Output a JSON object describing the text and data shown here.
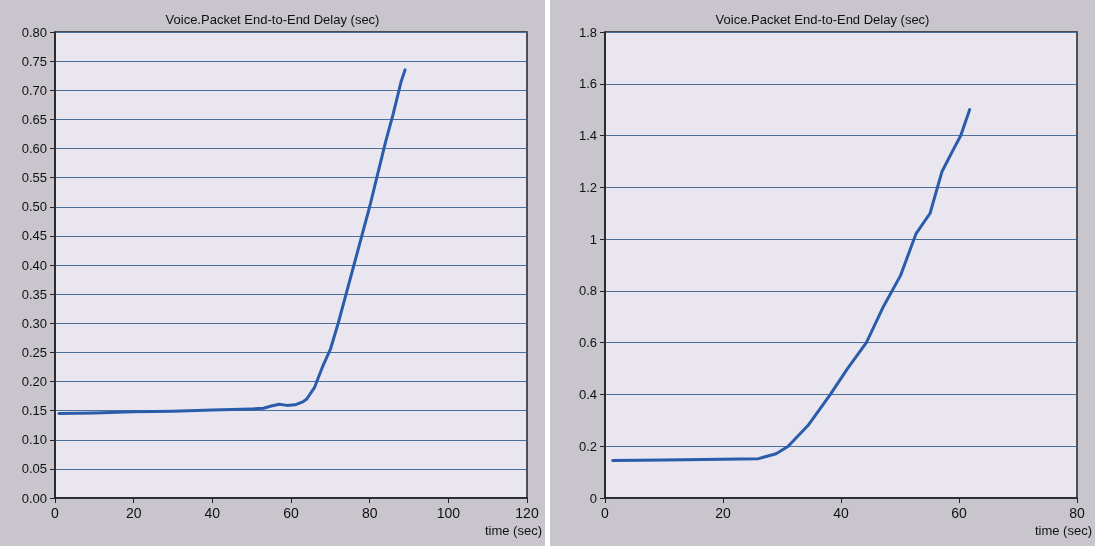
{
  "chart_data": [
    {
      "type": "line",
      "title": "Voice.Packet End-to-End Delay (sec)",
      "xlabel": "time (sec)",
      "series": [
        {
          "color": "#2a5caa",
          "x": [
            1,
            10,
            20,
            30,
            40,
            50,
            53,
            55,
            57,
            59,
            61,
            63,
            64,
            66,
            68,
            70,
            72,
            74,
            76,
            78,
            80,
            82,
            84,
            86,
            88,
            89
          ],
          "values": [
            0.145,
            0.146,
            0.148,
            0.149,
            0.151,
            0.153,
            0.154,
            0.158,
            0.161,
            0.159,
            0.16,
            0.165,
            0.17,
            0.19,
            0.225,
            0.255,
            0.3,
            0.35,
            0.4,
            0.45,
            0.5,
            0.555,
            0.61,
            0.66,
            0.715,
            0.735
          ]
        }
      ],
      "xlim": [
        0,
        120
      ],
      "xticks": [
        0,
        20,
        40,
        60,
        80,
        100,
        120
      ],
      "ylim": [
        0,
        0.8
      ],
      "yticks": [
        {
          "value": 0,
          "label": "0.00"
        },
        {
          "value": 0.05,
          "label": "0.05"
        },
        {
          "value": 0.1,
          "label": "0.10"
        },
        {
          "value": 0.15,
          "label": "0.15"
        },
        {
          "value": 0.2,
          "label": "0.20"
        },
        {
          "value": 0.25,
          "label": "0.25"
        },
        {
          "value": 0.3,
          "label": "0.30"
        },
        {
          "value": 0.35,
          "label": "0.35"
        },
        {
          "value": 0.4,
          "label": "0.40"
        },
        {
          "value": 0.45,
          "label": "0.45"
        },
        {
          "value": 0.5,
          "label": "0.50"
        },
        {
          "value": 0.55,
          "label": "0.55"
        },
        {
          "value": 0.6,
          "label": "0.60"
        },
        {
          "value": 0.65,
          "label": "0.65"
        },
        {
          "value": 0.7,
          "label": "0.70"
        },
        {
          "value": 0.75,
          "label": "0.75"
        },
        {
          "value": 0.8,
          "label": "0.80"
        }
      ],
      "grid": "y",
      "marker": "none",
      "line_style": "solid"
    },
    {
      "type": "line",
      "title": "Voice.Packet End-to-End Delay (sec)",
      "xlabel": "time (sec)",
      "series": [
        {
          "color": "#2a5caa",
          "x": [
            1.3,
            10,
            20,
            26,
            29,
            31,
            34.4,
            38.2,
            41.1,
            44.3,
            47.2,
            50.1,
            52.7,
            55.1,
            57.1,
            58.9,
            60.3,
            61.8
          ],
          "values": [
            0.145,
            0.147,
            0.15,
            0.152,
            0.171,
            0.199,
            0.28,
            0.4,
            0.5,
            0.6,
            0.74,
            0.86,
            1.02,
            1.1,
            1.26,
            1.34,
            1.4,
            1.5
          ]
        }
      ],
      "xlim": [
        0,
        80
      ],
      "xticks": [
        0,
        20,
        40,
        60,
        80
      ],
      "ylim": [
        0,
        1.8
      ],
      "yticks": [
        0,
        0.2,
        0.4,
        0.6,
        0.8,
        1,
        1.2,
        1.4,
        1.6,
        1.8
      ],
      "grid": "y",
      "marker": "none",
      "line_style": "solid"
    }
  ]
}
